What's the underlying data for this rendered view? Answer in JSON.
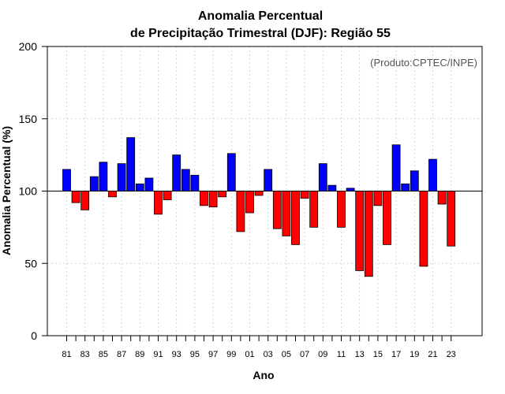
{
  "chart_data": {
    "type": "bar",
    "title_lines": [
      "Anomalia Percentual",
      "de Precipitação Trimestral (DJF): Região 55"
    ],
    "xlabel": "Ano",
    "ylabel": "Anomalia Percentual (%)",
    "annotation": "(Produto:CPTEC/INPE)",
    "baseline": 100,
    "ylim": [
      0,
      200
    ],
    "yticks": [
      0,
      50,
      100,
      150,
      200
    ],
    "x_tick_labels": [
      "81",
      "83",
      "85",
      "87",
      "89",
      "91",
      "93",
      "95",
      "97",
      "99",
      "01",
      "03",
      "05",
      "07",
      "09",
      "11",
      "13",
      "15",
      "17",
      "19",
      "21",
      "23"
    ],
    "categories": [
      "1981",
      "1982",
      "1983",
      "1984",
      "1985",
      "1986",
      "1987",
      "1988",
      "1989",
      "1990",
      "1991",
      "1992",
      "1993",
      "1994",
      "1995",
      "1996",
      "1997",
      "1998",
      "1999",
      "2000",
      "2001",
      "2002",
      "2003",
      "2004",
      "2005",
      "2006",
      "2007",
      "2008",
      "2009",
      "2010",
      "2011",
      "2012",
      "2013",
      "2014",
      "2015",
      "2016",
      "2017",
      "2018",
      "2019",
      "2020",
      "2021",
      "2022",
      "2023"
    ],
    "values": [
      115,
      92,
      87,
      110,
      120,
      96,
      119,
      137,
      105,
      109,
      84,
      94,
      125,
      115,
      111,
      90,
      89,
      96,
      126,
      72,
      85,
      97,
      115,
      74,
      69,
      63,
      95,
      75,
      119,
      104,
      75,
      102,
      45,
      41,
      90,
      63,
      132,
      105,
      114,
      48,
      122,
      91,
      62
    ],
    "colors": {
      "above": "#0000ff",
      "below": "#ff0000",
      "edge": "#000000",
      "grid": "#cccccc",
      "baseline": "#000000"
    },
    "grid": true
  }
}
